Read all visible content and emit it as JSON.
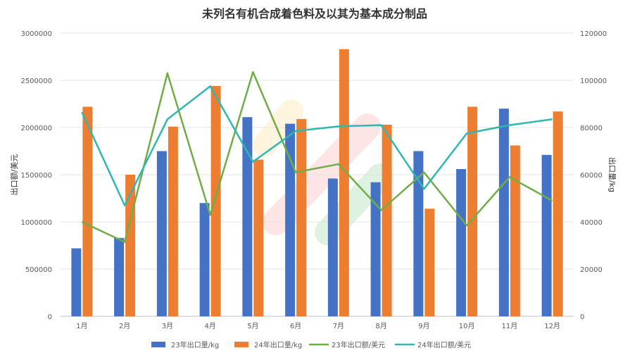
{
  "chart_data": {
    "type": "bar",
    "title": "未列名有机合成着色料及以其为基本成分制品",
    "categories": [
      "1月",
      "2月",
      "3月",
      "4月",
      "5月",
      "6月",
      "7月",
      "8月",
      "9月",
      "10月",
      "11月",
      "12月"
    ],
    "ylabel_left": "出口额/美元",
    "ylabel_right": "出口量/kg",
    "ylim_left": [
      0,
      3000000
    ],
    "yticks_left": [
      0,
      500000,
      1000000,
      1500000,
      2000000,
      2500000,
      3000000
    ],
    "ylim_right": [
      0,
      120000
    ],
    "yticks_right": [
      0,
      20000,
      40000,
      60000,
      80000,
      100000,
      120000
    ],
    "grid": true,
    "legend_position": "bottom",
    "series": [
      {
        "name": "23年出口量/kg",
        "kind": "bar",
        "axis": "left",
        "color": "#4472C4",
        "values": [
          720000,
          830000,
          1750000,
          1200000,
          2110000,
          2040000,
          1460000,
          1420000,
          1750000,
          1560000,
          2200000,
          1710000
        ]
      },
      {
        "name": "24年出口量/kg",
        "kind": "bar",
        "axis": "left",
        "color": "#ED7D31",
        "values": [
          2220000,
          1500000,
          2010000,
          2440000,
          1660000,
          2090000,
          2830000,
          2030000,
          1140000,
          2220000,
          1810000,
          2170000
        ]
      },
      {
        "name": "23年出口额/美元",
        "kind": "line",
        "axis": "right",
        "color": "#70AD47",
        "values": [
          40000,
          31500,
          103000,
          43000,
          103500,
          61000,
          64500,
          45000,
          61000,
          38500,
          59000,
          49000
        ]
      },
      {
        "name": "24年出口额/美元",
        "kind": "line",
        "axis": "right",
        "color": "#2EB8B0",
        "values": [
          86500,
          47000,
          83500,
          97500,
          65500,
          78500,
          80500,
          81000,
          54000,
          77500,
          81000,
          83500
        ]
      }
    ]
  }
}
